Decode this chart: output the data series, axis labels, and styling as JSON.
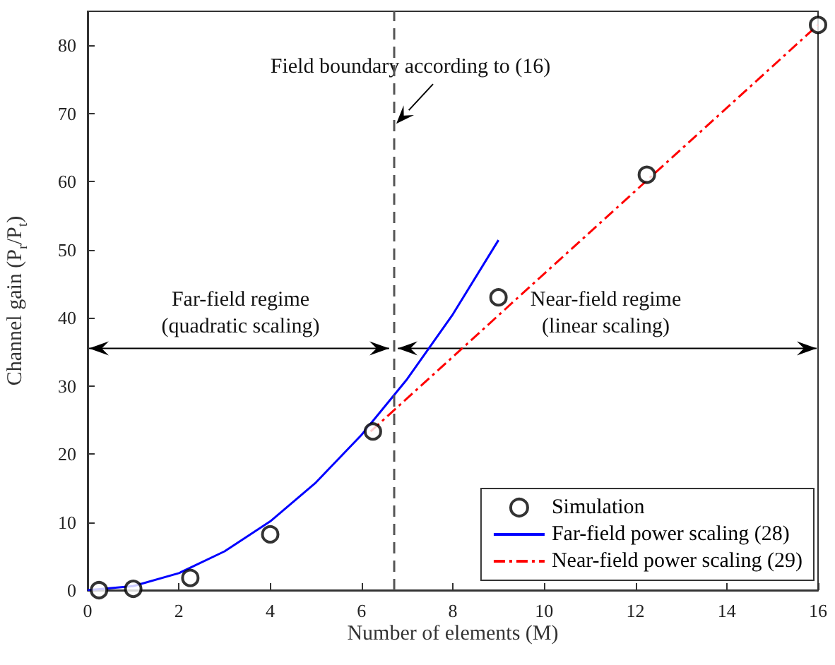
{
  "chart_data": {
    "type": "line",
    "xlabel": "Number of elements (M)",
    "ylabel": "Channel gain (P$_{r}$/P$_{t}$)",
    "xlim": [
      0,
      16
    ],
    "ylim": [
      0,
      85
    ],
    "xticks": [
      0,
      2,
      4,
      6,
      8,
      10,
      12,
      14,
      16
    ],
    "yticks": [
      0,
      10,
      20,
      30,
      40,
      50,
      60,
      70,
      80
    ],
    "grid": false,
    "legend": "bottom right",
    "series": [
      {
        "name": "Simulation",
        "type": "scatter",
        "color": "#000000",
        "marker": "circle",
        "x": [
          0.25,
          1,
          2.25,
          4,
          6.25,
          9,
          12.25,
          16
        ],
        "values": [
          0,
          0.2,
          1.8,
          8.2,
          23.3,
          43,
          61,
          83
        ]
      },
      {
        "name": "Far-field power scaling (28)",
        "type": "line",
        "color": "#0000ff",
        "line_style": "solid",
        "marker": "none",
        "x": [
          0,
          1,
          2,
          3,
          4,
          5,
          6,
          7,
          8,
          9
        ],
        "values": [
          0,
          0.6,
          2.5,
          5.7,
          10.1,
          15.8,
          22.8,
          31,
          40.5,
          51.4
        ]
      },
      {
        "name": "Near-field power scaling (29)",
        "type": "line",
        "color": "#ff0000",
        "line_style": "dashdot",
        "marker": "none",
        "x": [
          6.2,
          16
        ],
        "values": [
          23.3,
          83
        ]
      }
    ],
    "ref_lines": [
      {
        "axis": "x",
        "value": 6.7,
        "color": "#555555",
        "line_style": "dashed"
      }
    ],
    "annotations": [
      {
        "text": "Field boundary according to (16)",
        "x": 6.7,
        "y": 68.5
      },
      "Far-field regime\n(quadratic scaling)",
      "Near-field regime\n(linear scaling)"
    ]
  }
}
